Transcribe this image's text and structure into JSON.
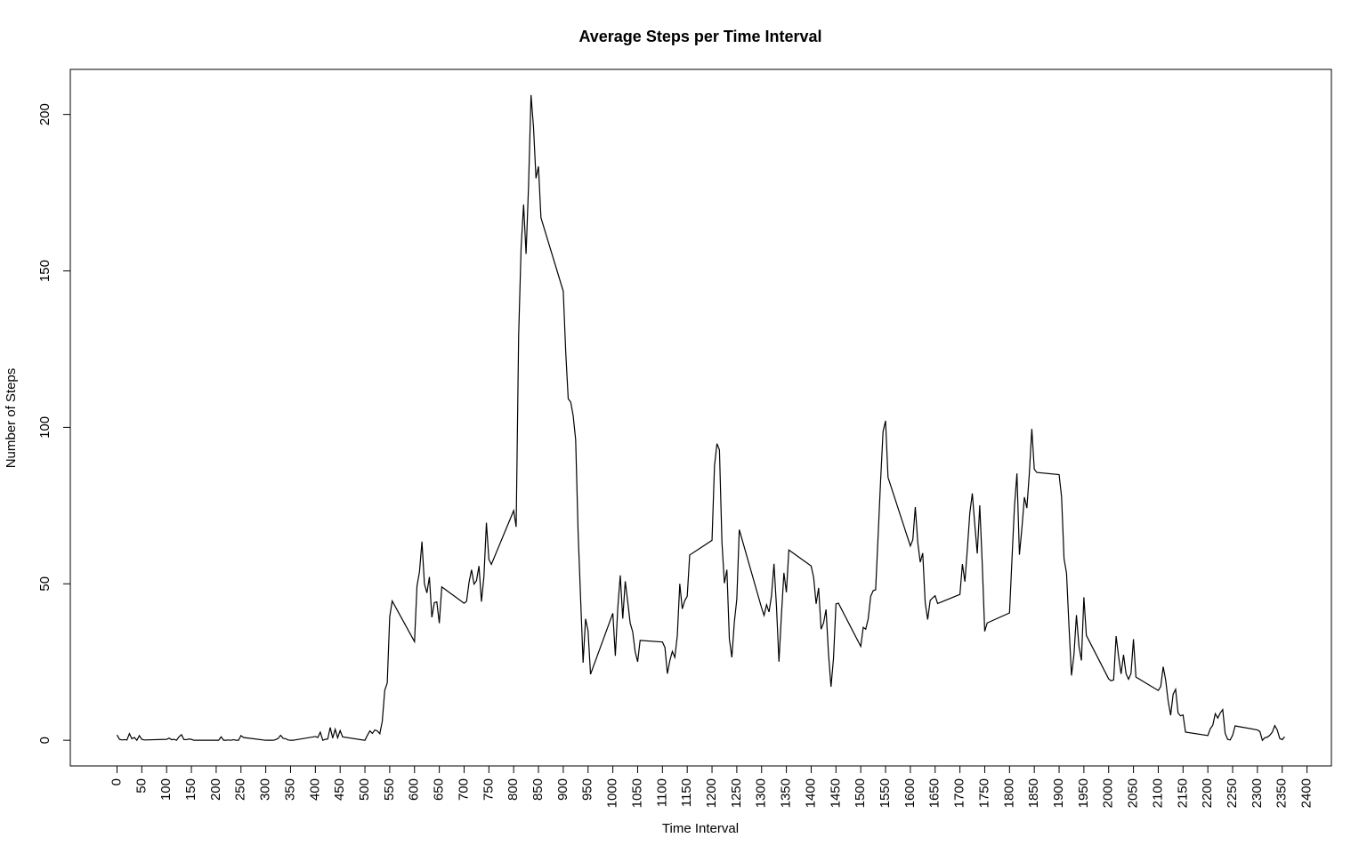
{
  "chart_data": {
    "type": "line",
    "title": "Average Steps per Time Interval",
    "xlabel": "Time Interval",
    "ylabel": "Number of Steps",
    "color": "#000000",
    "xlim": [
      -94.2,
      2449.2
    ],
    "ylim": [
      -8.2,
      214.4
    ],
    "xticks": [
      0,
      50,
      100,
      150,
      200,
      250,
      300,
      350,
      400,
      450,
      500,
      550,
      600,
      650,
      700,
      750,
      800,
      850,
      900,
      950,
      1000,
      1050,
      1100,
      1150,
      1200,
      1250,
      1300,
      1350,
      1400,
      1450,
      1500,
      1550,
      1600,
      1650,
      1700,
      1750,
      1800,
      1850,
      1900,
      1950,
      2000,
      2050,
      2100,
      2150,
      2200,
      2250,
      2300,
      2350,
      2400
    ],
    "yticks": [
      0,
      50,
      100,
      150,
      200
    ],
    "x": [
      0,
      5,
      10,
      15,
      20,
      25,
      30,
      35,
      40,
      45,
      50,
      55,
      100,
      105,
      110,
      115,
      120,
      125,
      130,
      135,
      140,
      145,
      150,
      155,
      200,
      205,
      210,
      215,
      220,
      225,
      230,
      235,
      240,
      245,
      250,
      255,
      300,
      305,
      310,
      315,
      320,
      325,
      330,
      335,
      340,
      345,
      350,
      355,
      400,
      405,
      410,
      415,
      420,
      425,
      430,
      435,
      440,
      445,
      450,
      455,
      500,
      505,
      510,
      515,
      520,
      525,
      530,
      535,
      540,
      545,
      550,
      555,
      600,
      605,
      610,
      615,
      620,
      625,
      630,
      635,
      640,
      645,
      650,
      655,
      700,
      705,
      710,
      715,
      720,
      725,
      730,
      735,
      740,
      745,
      750,
      755,
      800,
      805,
      810,
      815,
      820,
      825,
      830,
      835,
      840,
      845,
      850,
      855,
      900,
      905,
      910,
      915,
      920,
      925,
      930,
      935,
      940,
      945,
      950,
      955,
      1000,
      1005,
      1010,
      1015,
      1020,
      1025,
      1030,
      1035,
      1040,
      1045,
      1050,
      1055,
      1100,
      1105,
      1110,
      1115,
      1120,
      1125,
      1130,
      1135,
      1140,
      1145,
      1150,
      1155,
      1200,
      1205,
      1210,
      1215,
      1220,
      1225,
      1230,
      1235,
      1240,
      1245,
      1250,
      1255,
      1300,
      1305,
      1310,
      1315,
      1320,
      1325,
      1330,
      1335,
      1340,
      1345,
      1350,
      1355,
      1400,
      1405,
      1410,
      1415,
      1420,
      1425,
      1430,
      1435,
      1440,
      1445,
      1450,
      1455,
      1500,
      1505,
      1510,
      1515,
      1520,
      1525,
      1530,
      1535,
      1540,
      1545,
      1550,
      1555,
      1600,
      1605,
      1610,
      1615,
      1620,
      1625,
      1630,
      1635,
      1640,
      1645,
      1650,
      1655,
      1700,
      1705,
      1710,
      1715,
      1720,
      1725,
      1730,
      1735,
      1740,
      1745,
      1750,
      1755,
      1800,
      1805,
      1810,
      1815,
      1820,
      1825,
      1830,
      1835,
      1840,
      1845,
      1850,
      1855,
      1900,
      1905,
      1910,
      1915,
      1920,
      1925,
      1930,
      1935,
      1940,
      1945,
      1950,
      1955,
      2000,
      2005,
      2010,
      2015,
      2020,
      2025,
      2030,
      2035,
      2040,
      2045,
      2050,
      2055,
      2100,
      2105,
      2110,
      2115,
      2120,
      2125,
      2130,
      2135,
      2140,
      2145,
      2150,
      2155,
      2200,
      2205,
      2210,
      2215,
      2220,
      2225,
      2230,
      2235,
      2240,
      2245,
      2250,
      2255,
      2300,
      2305,
      2310,
      2315,
      2320,
      2325,
      2330,
      2335,
      2340,
      2345,
      2350,
      2355
    ],
    "values": [
      1.7,
      0.3,
      0.1,
      0.2,
      0.1,
      2.1,
      0.5,
      0.9,
      0,
      1.5,
      0.3,
      0.1,
      0.3,
      0.7,
      0.2,
      0.3,
      0,
      1.1,
      1.8,
      0.2,
      0.2,
      0.4,
      0.3,
      0,
      0,
      0,
      1.1,
      0,
      0,
      0.1,
      0,
      0.2,
      0,
      0,
      1.5,
      0.9,
      0,
      0,
      0,
      0,
      0.2,
      0.6,
      1.6,
      0.6,
      0.5,
      0.1,
      0,
      0,
      1.2,
      0.9,
      2.6,
      0,
      0.3,
      0.4,
      4.1,
      0.7,
      3.5,
      0.8,
      3.1,
      1.1,
      0,
      1.6,
      3,
      2.2,
      3.3,
      3,
      2.1,
      6.1,
      16,
      18.3,
      39.5,
      44.5,
      31.5,
      49.3,
      53.8,
      63.5,
      50,
      47.1,
      52.2,
      39.3,
      44,
      44.2,
      37.4,
      49,
      43.8,
      44.4,
      50.5,
      54.5,
      49.9,
      51,
      55.7,
      44.3,
      52.3,
      69.5,
      57.8,
      56.2,
      73.4,
      68.2,
      129.4,
      157.5,
      171.2,
      155.4,
      177.3,
      206.2,
      195.9,
      179.6,
      183.4,
      167,
      143.5,
      124,
      109.1,
      108.1,
      103.7,
      96,
      66.2,
      45.2,
      24.8,
      38.8,
      35,
      21.1,
      40.6,
      27,
      42.4,
      52.7,
      38.9,
      50.8,
      44.3,
      37.4,
      34.7,
      28.3,
      25.1,
      31.9,
      31.4,
      29.7,
      21.3,
      25.5,
      28.4,
      26.5,
      33.4,
      50,
      42,
      44.6,
      46,
      59.2,
      63.9,
      87.7,
      94.8,
      92.8,
      63.4,
      50.2,
      54.5,
      32.4,
      26.5,
      37.7,
      45.1,
      67.3,
      42.3,
      39.9,
      43.3,
      41,
      46.2,
      56.4,
      42.8,
      25.1,
      40,
      53.5,
      47.3,
      60.8,
      55.7,
      52,
      43.6,
      48.7,
      35.5,
      37.5,
      41.8,
      27.5,
      17.1,
      26.1,
      43.6,
      43.8,
      30,
      36.1,
      35.5,
      38.8,
      46,
      47.8,
      48.1,
      65.3,
      82.9,
      98.7,
      102.1,
      84,
      62.1,
      64.1,
      74.5,
      63.2,
      56.9,
      59.8,
      43.9,
      38.6,
      44.7,
      45.5,
      46.2,
      43.7,
      46.6,
      56.3,
      50.7,
      61.2,
      72.7,
      78.9,
      68.9,
      59.7,
      75.1,
      56.5,
      34.8,
      37.5,
      40.7,
      58,
      74.7,
      85.3,
      59.3,
      67.8,
      77.7,
      74.2,
      85.3,
      99.5,
      86.6,
      85.6,
      84.9,
      77.8,
      58,
      53.4,
      36.3,
      20.7,
      27.4,
      40,
      30.2,
      25.5,
      45.7,
      33.5,
      19.6,
      19,
      19.3,
      33.3,
      26.8,
      21.2,
      27.3,
      21.3,
      19.5,
      21.3,
      32.3,
      20.2,
      15.9,
      17.2,
      23.5,
      19.2,
      12.5,
      8,
      14.7,
      16.3,
      8.7,
      7.8,
      8.1,
      2.6,
      1.5,
      3.7,
      4.8,
      8.5,
      7.1,
      8.7,
      9.8,
      2.2,
      0.3,
      0.1,
      1.6,
      4.6,
      3.3,
      2.8,
      0,
      0.8,
      1,
      1.6,
      2.6,
      4.7,
      3.3,
      0.6,
      0.2,
      1.1
    ]
  }
}
